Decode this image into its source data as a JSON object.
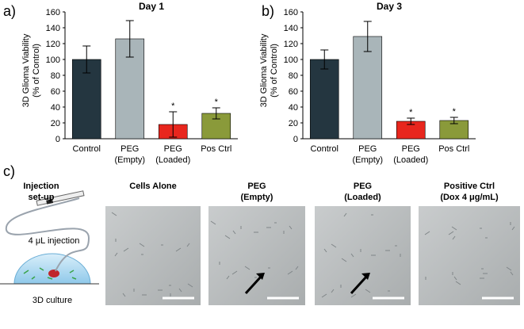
{
  "chart_data": [
    {
      "type": "bar",
      "panel_label": "a)",
      "title": "Day 1",
      "ylabel": "3D Glioma Viability\n(% of Control)",
      "categories": [
        "Control",
        "PEG\n(Empty)",
        "PEG\n(Loaded)",
        "Pos Ctrl"
      ],
      "values": [
        100,
        126,
        18,
        32
      ],
      "errors": [
        17,
        23,
        16,
        7
      ],
      "annotations": [
        null,
        null,
        "*",
        "*"
      ],
      "colors": [
        "#243640",
        "#a9b5b9",
        "#e8261d",
        "#8a9a3a"
      ],
      "ylim": [
        0,
        160
      ],
      "yticks": [
        0,
        20,
        40,
        60,
        80,
        100,
        120,
        140,
        160
      ]
    },
    {
      "type": "bar",
      "panel_label": "b)",
      "title": "Day 3",
      "ylabel": "3D Glioma Viability\n(% of Control)",
      "categories": [
        "Control",
        "PEG\n(Empty)",
        "PEG\n(Loaded)",
        "Pos Ctrl"
      ],
      "values": [
        100,
        129,
        22,
        23
      ],
      "errors": [
        12,
        19,
        4,
        4
      ],
      "annotations": [
        null,
        null,
        "*",
        "*"
      ],
      "colors": [
        "#243640",
        "#a9b5b9",
        "#e8261d",
        "#8a9a3a"
      ],
      "ylim": [
        0,
        160
      ],
      "yticks": [
        0,
        20,
        40,
        60,
        80,
        100,
        120,
        140,
        160
      ]
    }
  ],
  "panel_c": {
    "label": "c)",
    "schematic_title": "Injection\nset-up",
    "injection": "4 μL injection",
    "culture": "3D culture",
    "images": [
      "Cells Alone",
      "PEG\n(Empty)",
      "PEG\n(Loaded)",
      "Positive Ctrl\n(Dox 4 μg/mL)"
    ]
  }
}
